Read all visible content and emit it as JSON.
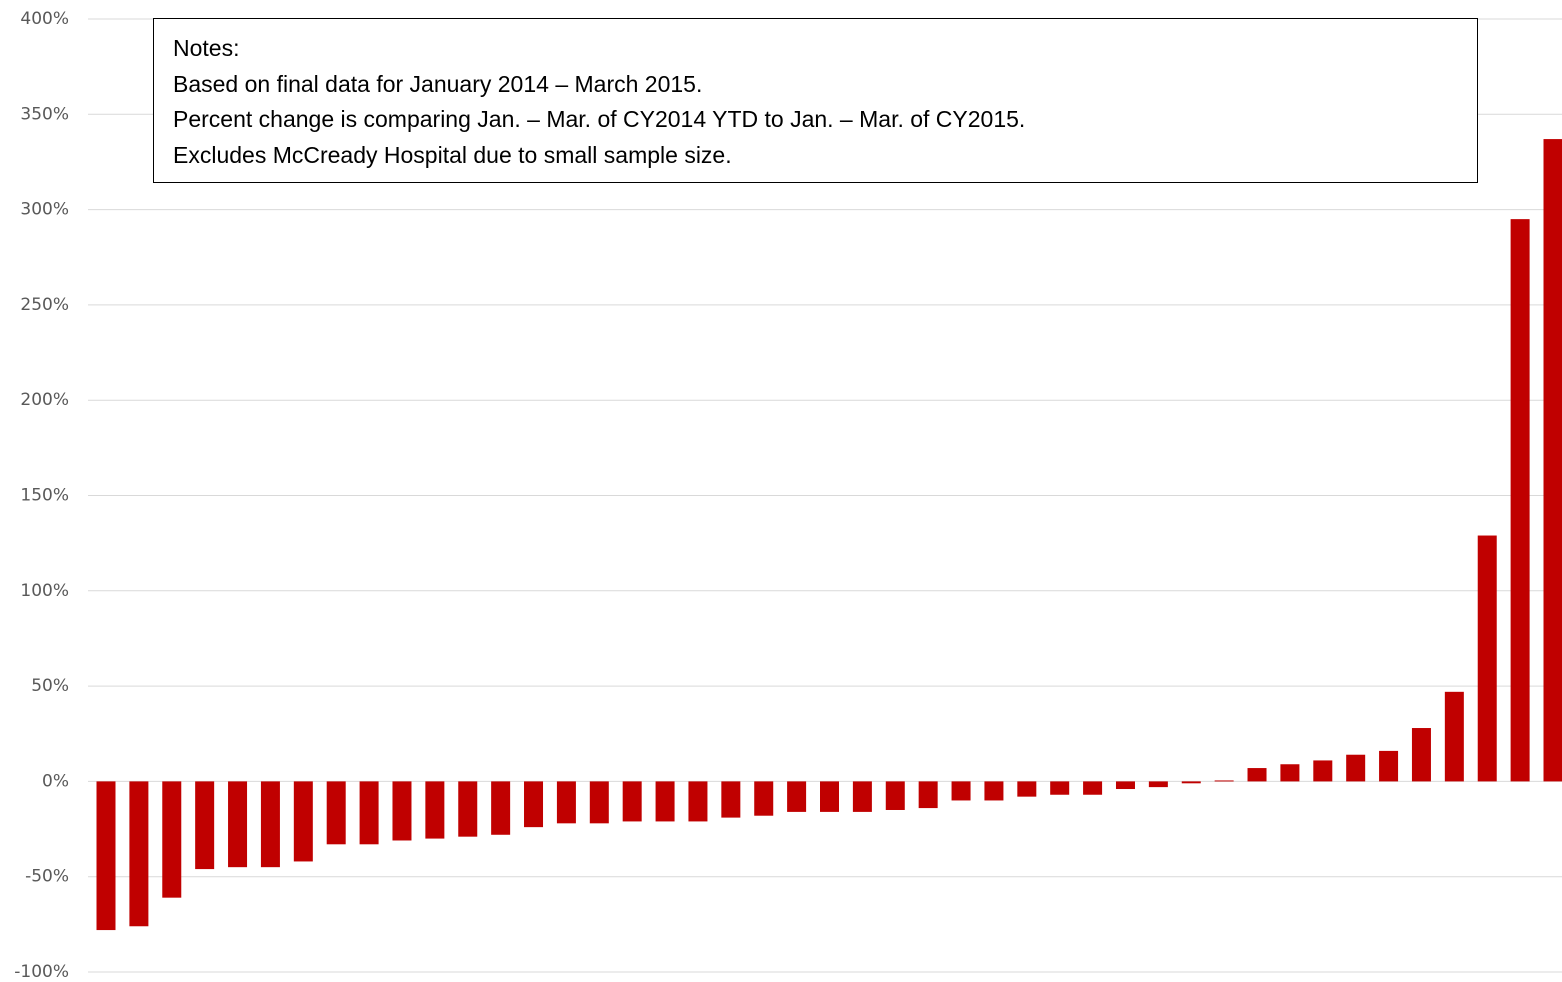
{
  "chart_data": {
    "type": "bar",
    "title": "",
    "xlabel": "",
    "ylabel": "",
    "ylim": [
      -100,
      400
    ],
    "yticks": [
      400,
      350,
      300,
      250,
      200,
      150,
      100,
      50,
      0,
      -50,
      -100
    ],
    "ytick_labels": [
      "400%",
      "350%",
      "300%",
      "250%",
      "200%",
      "150%",
      "100%",
      "50%",
      "0%",
      "-50%",
      "-100%"
    ],
    "grid": true,
    "legend": "none",
    "bar_color": "#c00000",
    "values": [
      -78,
      -76,
      -61,
      -46,
      -45,
      -45,
      -42,
      -33,
      -33,
      -31,
      -30,
      -29,
      -28,
      -24,
      -22,
      -22,
      -21,
      -21,
      -21,
      -19,
      -18,
      -16,
      -16,
      -16,
      -15,
      -14,
      -10,
      -10,
      -8,
      -7,
      -7,
      -4,
      -3,
      -1,
      0.5,
      7,
      9,
      11,
      14,
      16,
      28,
      47,
      129,
      295,
      337
    ]
  },
  "notes": {
    "heading": "Notes:",
    "lines": [
      "Based on final data for January 2014 – March 2015.",
      "Percent change is comparing Jan. – Mar. of CY2014 YTD to Jan. – Mar. of CY2015.",
      "Excludes McCready Hospital due to small sample size."
    ]
  }
}
